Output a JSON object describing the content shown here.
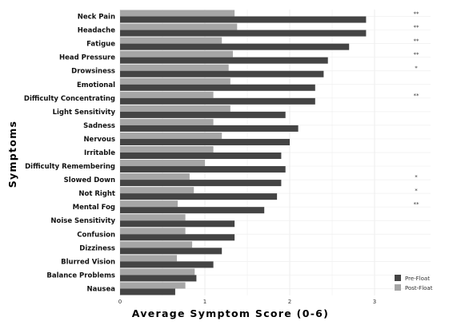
{
  "chart_data": {
    "type": "bar",
    "orientation": "horizontal",
    "title": "",
    "xlabel": "Average Symptom Score (0-6)",
    "ylabel": "Symptoms",
    "xlim": [
      0,
      3.4
    ],
    "xticks": [
      0,
      1,
      2,
      3
    ],
    "grid": true,
    "legend_position": "bottom-right",
    "categories": [
      "Neck Pain",
      "Headache",
      "Fatigue",
      "Head Pressure",
      "Drowsiness",
      "Emotional",
      "Difficulty Concentrating",
      "Light Sensitivity",
      "Sadness",
      "Nervous",
      "Irritable",
      "Difficulty Remembering",
      "Slowed Down",
      "Not Right",
      "Mental Fog",
      "Noise Sensitivity",
      "Confusion",
      "Dizziness",
      "Blurred Vision",
      "Balance Problems",
      "Nausea"
    ],
    "significance": [
      "**",
      "**",
      "**",
      "**",
      "*",
      "",
      "**",
      "",
      "",
      "",
      "",
      "",
      "*",
      "*",
      "**",
      "",
      "",
      "",
      "",
      "",
      ""
    ],
    "series": [
      {
        "name": "Pre-Float",
        "color": "#444444",
        "values": [
          2.9,
          2.9,
          2.7,
          2.45,
          2.4,
          2.3,
          2.3,
          1.95,
          2.1,
          2.0,
          1.9,
          1.95,
          1.9,
          1.85,
          1.7,
          1.35,
          1.35,
          1.2,
          1.1,
          0.9,
          0.65
        ]
      },
      {
        "name": "Post-Float",
        "color": "#a6a6a6",
        "values": [
          1.35,
          1.38,
          1.2,
          1.33,
          1.28,
          1.3,
          1.1,
          1.3,
          1.1,
          1.2,
          1.1,
          1.0,
          0.82,
          0.87,
          0.68,
          0.77,
          0.77,
          0.85,
          0.67,
          0.88,
          0.77
        ]
      }
    ]
  }
}
